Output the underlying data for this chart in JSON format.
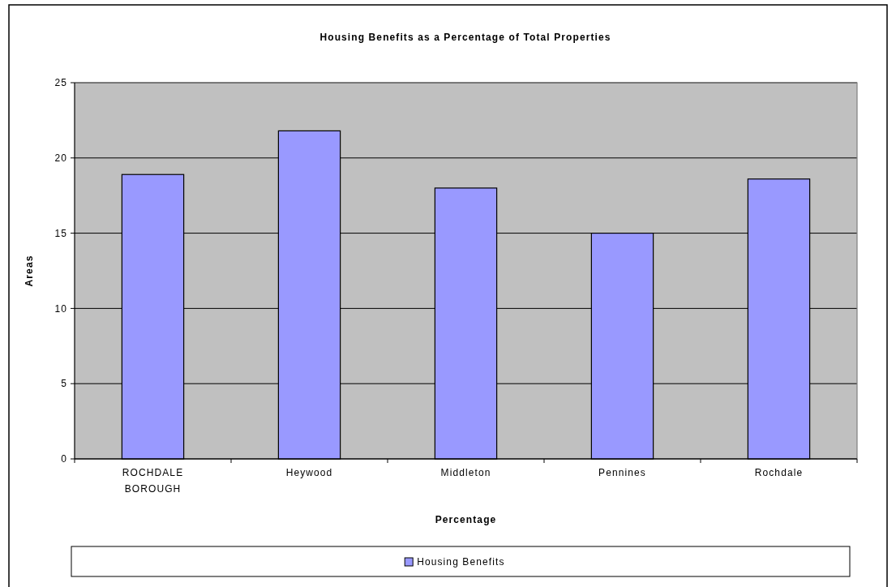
{
  "chart_data": {
    "type": "bar",
    "title": "Housing Benefits as a Percentage of Total Properties",
    "xlabel": "Percentage",
    "ylabel": "Areas",
    "categories": [
      "ROCHDALE BOROUGH",
      "Heywood",
      "Middleton",
      "Pennines",
      "Rochdale"
    ],
    "series": [
      {
        "name": "Housing Benefits",
        "color": "#9999ff",
        "values": [
          18.9,
          21.8,
          18.0,
          15.0,
          18.6
        ]
      }
    ],
    "ylim": [
      0,
      25
    ],
    "yticks": [
      0,
      5,
      10,
      15,
      20,
      25
    ],
    "grid": "y",
    "legend": "bottom"
  }
}
